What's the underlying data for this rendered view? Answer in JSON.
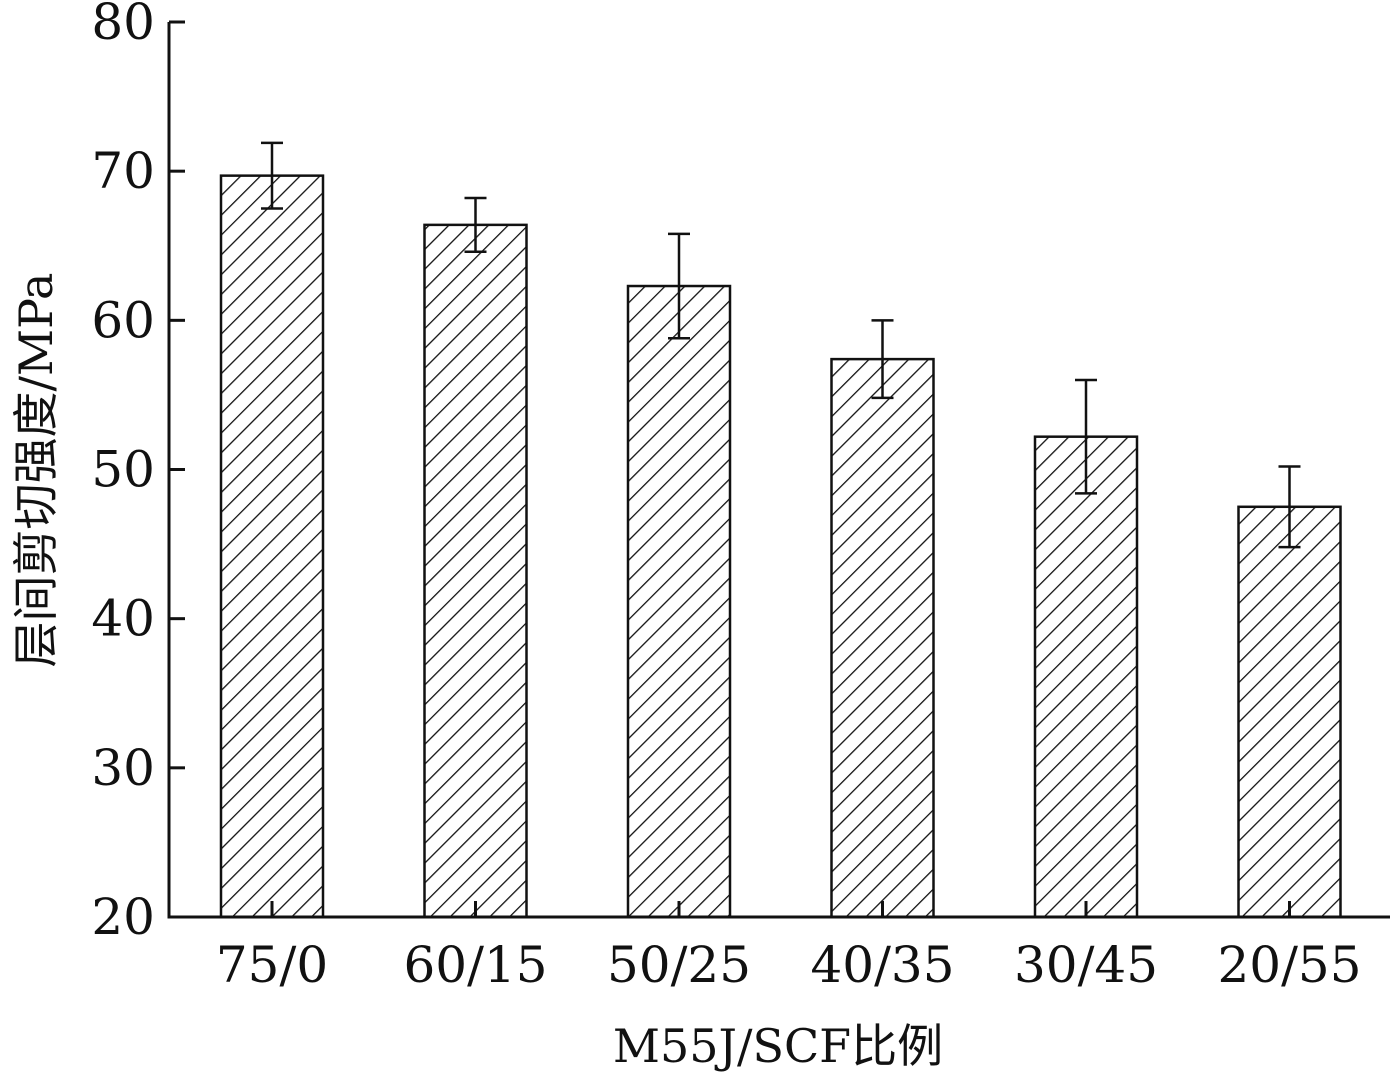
{
  "chart_data": {
    "type": "bar",
    "title": "",
    "xlabel": "M55J/SCF比例",
    "ylabel": "层间剪切强度/MPa",
    "categories": [
      "75/0",
      "60/15",
      "50/25",
      "40/35",
      "30/45",
      "20/55"
    ],
    "values": [
      69.7,
      66.4,
      62.3,
      57.4,
      52.2,
      47.5
    ],
    "errors": [
      2.2,
      1.8,
      3.5,
      2.6,
      3.8,
      2.7
    ],
    "ylim": [
      20,
      80
    ],
    "yticks": [
      20,
      30,
      40,
      50,
      60,
      70,
      80
    ],
    "grid": false,
    "legend": "none",
    "bar_fill": "hatched",
    "colors": {
      "stroke": "#111111",
      "background": "#ffffff"
    }
  }
}
